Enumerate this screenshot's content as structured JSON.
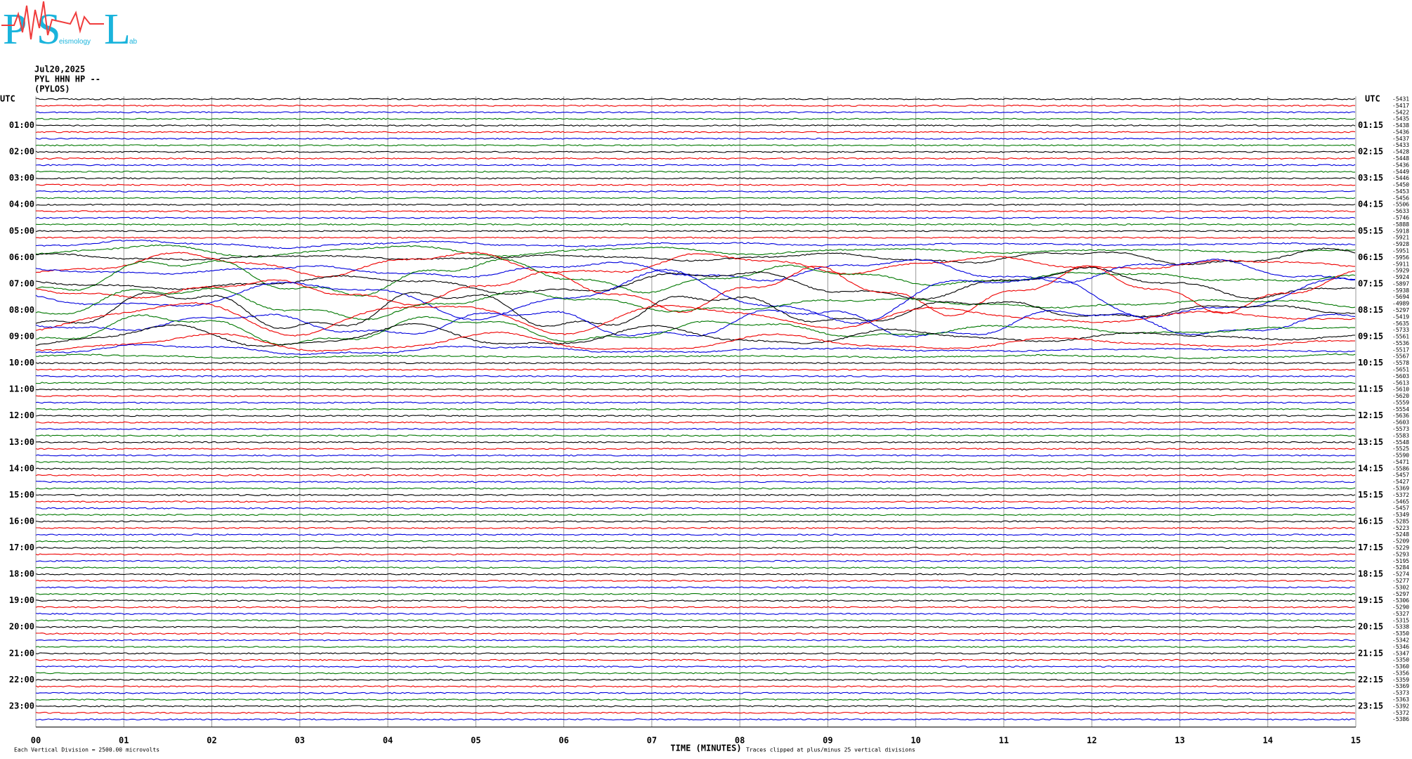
{
  "logo": {
    "letters": [
      "P",
      "S",
      "L"
    ],
    "words": [
      "eismology",
      "ab"
    ]
  },
  "header": {
    "date": "Jul20,2025",
    "channel": "PYL HHN HP --",
    "station": "(PYLOS)"
  },
  "left_axis": {
    "title": "UTC",
    "labels": [
      "01:00",
      "02:00",
      "03:00",
      "04:00",
      "05:00",
      "06:00",
      "07:00",
      "08:00",
      "09:00",
      "10:00",
      "11:00",
      "12:00",
      "13:00",
      "14:00",
      "15:00",
      "16:00",
      "17:00",
      "18:00",
      "19:00",
      "20:00",
      "21:00",
      "22:00",
      "23:00"
    ]
  },
  "right_axis": {
    "title": "UTC",
    "labels": [
      "01:15",
      "02:15",
      "03:15",
      "04:15",
      "05:15",
      "06:15",
      "07:15",
      "08:15",
      "09:15",
      "10:15",
      "11:15",
      "12:15",
      "13:15",
      "14:15",
      "15:15",
      "16:15",
      "17:15",
      "18:15",
      "19:15",
      "20:15",
      "21:15",
      "22:15",
      "23:15"
    ]
  },
  "offsets": [
    "-5431",
    "-5417",
    "-5422",
    "-5435",
    "-5438",
    "-5436",
    "-5437",
    "-5433",
    "-5428",
    "-5448",
    "-5436",
    "-5449",
    "-5446",
    "-5450",
    "-5453",
    "-5456",
    "-5506",
    "-5633",
    "-5746",
    "-5888",
    "-5918",
    "-5921",
    "-5928",
    "-5951",
    "-5956",
    "-5911",
    "-5929",
    "-5924",
    "-5897",
    "-5938",
    "-5694",
    "-4989",
    "-5297",
    "-5419",
    "-5635",
    "-5733",
    "-5561",
    "-5536",
    "-5517",
    "-5567",
    "-5578",
    "-5651",
    "-5603",
    "-5613",
    "-5610",
    "-5620",
    "-5559",
    "-5554",
    "-5636",
    "-5603",
    "-5573",
    "-5583",
    "-5548",
    "-5525",
    "-5590",
    "-5471",
    "-5586",
    "-5457",
    "-5427",
    "-5369",
    "-5372",
    "-5465",
    "-5457",
    "-5349",
    "-5285",
    "-5223",
    "-5248",
    "-5209",
    "-5229",
    "-5293",
    "-5195",
    "-5284",
    "-5274",
    "-5277",
    "-5302",
    "-5297",
    "-5306",
    "-5290",
    "-5327",
    "-5315",
    "-5338",
    "-5350",
    "-5342",
    "-5346",
    "-5347",
    "-5350",
    "-5360",
    "-5356",
    "-5359",
    "-5369",
    "-5373",
    "-5363",
    "-5392",
    "-5372",
    "-5386"
  ],
  "x_axis": {
    "ticks": [
      "00",
      "01",
      "02",
      "03",
      "04",
      "05",
      "06",
      "07",
      "08",
      "09",
      "10",
      "11",
      "12",
      "13",
      "14",
      "15"
    ],
    "title": "TIME (MINUTES)"
  },
  "footer": {
    "scale": "Each Vertical Division = 2500.00 microvolts",
    "clip": "Traces clipped at plus/minus 25 vertical divisions"
  }
}
